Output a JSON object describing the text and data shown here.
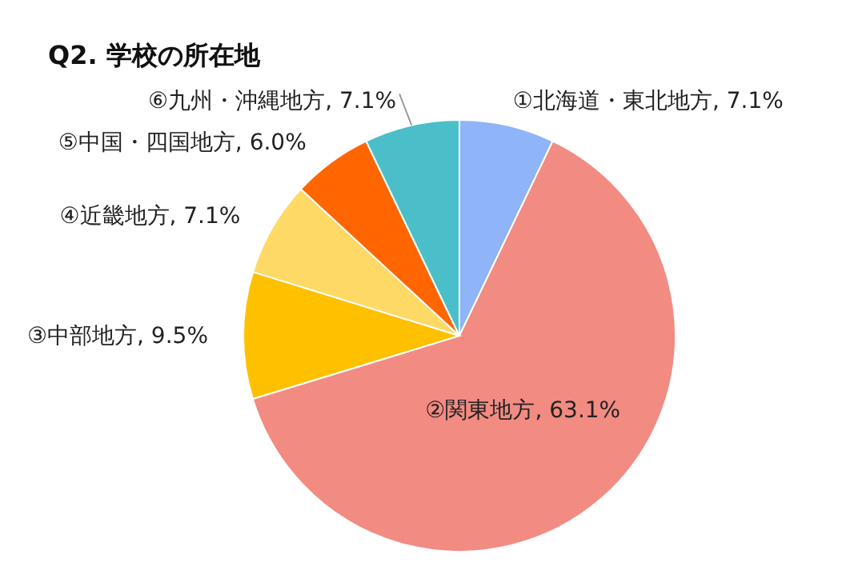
{
  "chart_data": {
    "type": "pie",
    "title": "Q2. 学校の所在地",
    "categories": [
      "①北海道・東北地方",
      "②関東地方",
      "③中部地方",
      "④近畿地方",
      "⑤中国・四国地方",
      "⑥九州・沖縄地方"
    ],
    "values": [
      7.1,
      63.1,
      9.5,
      7.1,
      6.0,
      7.1
    ],
    "value_labels": [
      "7.1%",
      "63.1%",
      "9.5%",
      "7.1%",
      "6.0%",
      "7.1%"
    ],
    "colors": [
      "#8fb4f7",
      "#f28b82",
      "#ffc000",
      "#ffd966",
      "#ff6600",
      "#4bbfc9"
    ]
  }
}
